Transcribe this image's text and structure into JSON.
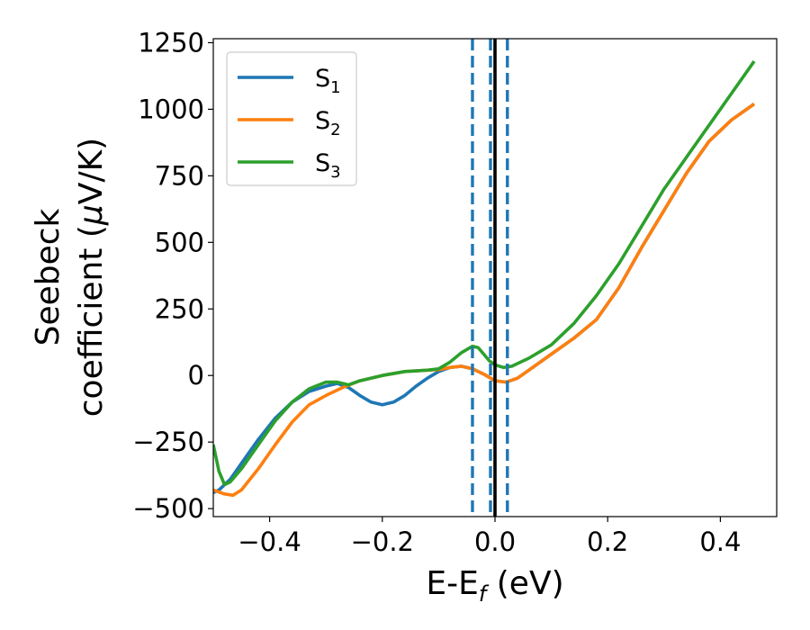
{
  "chart_data": {
    "type": "line",
    "title": "",
    "xlabel": {
      "main": "E-E",
      "sub": "f",
      "unit": " (eV)"
    },
    "ylabel": {
      "line1": "Seebeck",
      "line2_pre": "coefficient  (",
      "line2_mu": "μ",
      "line2_post": "V/K)"
    },
    "xlim": [
      -0.5,
      0.5
    ],
    "ylim": [
      -530,
      1265
    ],
    "xticks": [
      {
        "value": -0.4,
        "label": "−0.4"
      },
      {
        "value": -0.2,
        "label": "−0.2"
      },
      {
        "value": 0.0,
        "label": "0.0"
      },
      {
        "value": 0.2,
        "label": "0.2"
      },
      {
        "value": 0.4,
        "label": "0.4"
      }
    ],
    "yticks": [
      {
        "value": -500,
        "label": "−500"
      },
      {
        "value": -250,
        "label": "−250"
      },
      {
        "value": 0,
        "label": "0"
      },
      {
        "value": 250,
        "label": "250"
      },
      {
        "value": 500,
        "label": "500"
      },
      {
        "value": 750,
        "label": "750"
      },
      {
        "value": 1000,
        "label": "1000"
      },
      {
        "value": 1250,
        "label": "1250"
      }
    ],
    "grid": false,
    "legend": {
      "position": "top-left"
    },
    "series": [
      {
        "name": "S",
        "sub": "1",
        "color": "#1f77b4",
        "points": [
          [
            -0.5,
            -440
          ],
          [
            -0.49,
            -430
          ],
          [
            -0.47,
            -390
          ],
          [
            -0.45,
            -330
          ],
          [
            -0.42,
            -240
          ],
          [
            -0.39,
            -160
          ],
          [
            -0.36,
            -100
          ],
          [
            -0.33,
            -60
          ],
          [
            -0.3,
            -40
          ],
          [
            -0.28,
            -30
          ],
          [
            -0.26,
            -45
          ],
          [
            -0.24,
            -75
          ],
          [
            -0.22,
            -100
          ],
          [
            -0.2,
            -110
          ],
          [
            -0.18,
            -100
          ],
          [
            -0.16,
            -75
          ],
          [
            -0.14,
            -40
          ],
          [
            -0.12,
            -10
          ],
          [
            -0.1,
            15
          ],
          [
            -0.08,
            30
          ],
          [
            -0.06,
            35
          ],
          [
            -0.04,
            25
          ],
          [
            -0.02,
            5
          ],
          [
            0.0,
            -20
          ],
          [
            0.02,
            -25
          ],
          [
            0.04,
            -10
          ],
          [
            0.06,
            20
          ],
          [
            0.1,
            80
          ],
          [
            0.14,
            140
          ],
          [
            0.18,
            210
          ],
          [
            0.22,
            330
          ],
          [
            0.26,
            480
          ],
          [
            0.3,
            620
          ],
          [
            0.34,
            760
          ],
          [
            0.38,
            880
          ],
          [
            0.42,
            960
          ],
          [
            0.46,
            1020
          ]
        ]
      },
      {
        "name": "S",
        "sub": "2",
        "color": "#ff7f0e",
        "points": [
          [
            -0.5,
            -430
          ],
          [
            -0.48,
            -445
          ],
          [
            -0.465,
            -450
          ],
          [
            -0.45,
            -430
          ],
          [
            -0.42,
            -350
          ],
          [
            -0.39,
            -260
          ],
          [
            -0.36,
            -175
          ],
          [
            -0.33,
            -110
          ],
          [
            -0.3,
            -75
          ],
          [
            -0.27,
            -45
          ],
          [
            -0.24,
            -20
          ],
          [
            -0.2,
            0
          ],
          [
            -0.16,
            15
          ],
          [
            -0.12,
            20
          ],
          [
            -0.1,
            22
          ],
          [
            -0.08,
            30
          ],
          [
            -0.06,
            35
          ],
          [
            -0.04,
            25
          ],
          [
            -0.02,
            5
          ],
          [
            0.0,
            -20
          ],
          [
            0.02,
            -25
          ],
          [
            0.04,
            -10
          ],
          [
            0.06,
            20
          ],
          [
            0.1,
            80
          ],
          [
            0.14,
            140
          ],
          [
            0.18,
            210
          ],
          [
            0.22,
            330
          ],
          [
            0.26,
            480
          ],
          [
            0.3,
            620
          ],
          [
            0.34,
            760
          ],
          [
            0.38,
            880
          ],
          [
            0.42,
            960
          ],
          [
            0.46,
            1020
          ]
        ]
      },
      {
        "name": "S",
        "sub": "3",
        "color": "#2ca02c",
        "points": [
          [
            -0.5,
            -260
          ],
          [
            -0.49,
            -360
          ],
          [
            -0.48,
            -410
          ],
          [
            -0.47,
            -400
          ],
          [
            -0.45,
            -350
          ],
          [
            -0.42,
            -260
          ],
          [
            -0.39,
            -170
          ],
          [
            -0.36,
            -100
          ],
          [
            -0.33,
            -50
          ],
          [
            -0.3,
            -25
          ],
          [
            -0.28,
            -25
          ],
          [
            -0.26,
            -35
          ],
          [
            -0.24,
            -20
          ],
          [
            -0.2,
            0
          ],
          [
            -0.16,
            15
          ],
          [
            -0.12,
            20
          ],
          [
            -0.1,
            25
          ],
          [
            -0.08,
            50
          ],
          [
            -0.06,
            85
          ],
          [
            -0.04,
            110
          ],
          [
            -0.03,
            105
          ],
          [
            -0.02,
            80
          ],
          [
            -0.01,
            55
          ],
          [
            0.0,
            40
          ],
          [
            0.015,
            30
          ],
          [
            0.03,
            35
          ],
          [
            0.06,
            65
          ],
          [
            0.1,
            115
          ],
          [
            0.14,
            195
          ],
          [
            0.18,
            300
          ],
          [
            0.22,
            420
          ],
          [
            0.26,
            560
          ],
          [
            0.3,
            700
          ],
          [
            0.34,
            820
          ],
          [
            0.38,
            940
          ],
          [
            0.42,
            1060
          ],
          [
            0.46,
            1180
          ]
        ]
      }
    ],
    "vlines": [
      {
        "x": -0.04,
        "style": "dashed",
        "color": "#1f77b4"
      },
      {
        "x": -0.008,
        "style": "dashed",
        "color": "#1f77b4"
      },
      {
        "x": 0.022,
        "style": "dashed",
        "color": "#1f77b4"
      },
      {
        "x": 0.0,
        "style": "solid",
        "color": "#000000"
      }
    ]
  }
}
